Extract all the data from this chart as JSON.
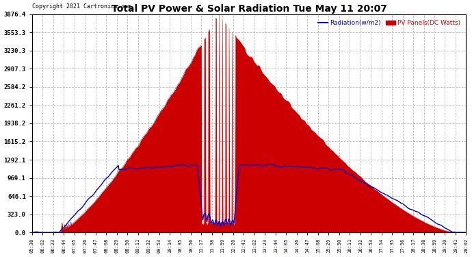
{
  "title": "Total PV Power & Solar Radiation Tue May 11 20:07",
  "copyright": "Copyright 2021 Cartronics.com",
  "legend_radiation": "Radiation(w/m2)",
  "legend_pv": "PV Panels(DC Watts)",
  "ymax": 3876.4,
  "yticks": [
    0.0,
    323.0,
    646.1,
    969.1,
    1292.1,
    1615.2,
    1938.2,
    2261.2,
    2584.2,
    2907.3,
    3230.3,
    3553.3,
    3876.4
  ],
  "bg_color": "#ffffff",
  "grid_color": "#bbbbbb",
  "pv_color": "#cc0000",
  "radiation_color": "#0000cc",
  "title_color": "#000000",
  "xtick_labels": [
    "05:38",
    "06:02",
    "06:23",
    "06:44",
    "07:05",
    "07:26",
    "07:47",
    "08:08",
    "08:29",
    "08:50",
    "09:11",
    "09:32",
    "09:53",
    "10:14",
    "10:35",
    "10:56",
    "11:17",
    "11:38",
    "11:59",
    "12:20",
    "12:41",
    "13:02",
    "13:23",
    "13:44",
    "14:05",
    "14:26",
    "14:47",
    "15:08",
    "15:29",
    "15:50",
    "16:11",
    "16:32",
    "16:53",
    "17:14",
    "17:35",
    "17:56",
    "18:17",
    "18:38",
    "18:59",
    "19:20",
    "19:41",
    "20:02"
  ],
  "n_points": 840
}
